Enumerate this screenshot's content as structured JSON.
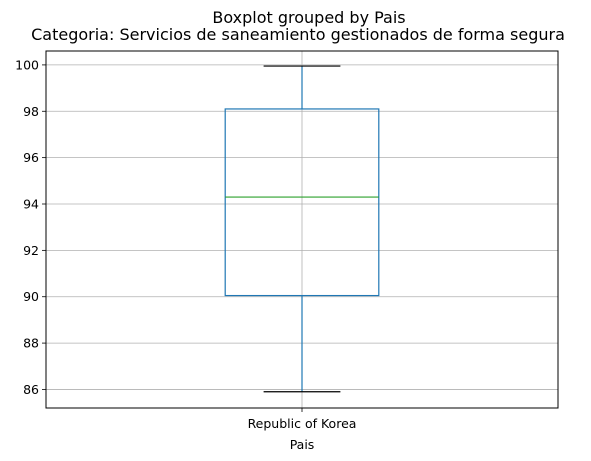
{
  "chart_data": {
    "type": "boxplot",
    "suptitle": "Boxplot grouped by Pais",
    "title": "Categoria: Servicios de saneamiento gestionados de forma segura",
    "xlabel": "Pais",
    "ylabel": "",
    "categories": [
      "Republic of Korea"
    ],
    "boxes": [
      {
        "category": "Republic of Korea",
        "whisker_low": 85.9,
        "q1": 90.05,
        "median": 94.3,
        "q3": 98.1,
        "whisker_high": 99.95
      }
    ],
    "ylim": [
      85.2,
      100.6
    ],
    "yticks": [
      86,
      88,
      90,
      92,
      94,
      96,
      98,
      100
    ],
    "grid": true,
    "colors": {
      "box": "#1f77b4",
      "median": "#2ca02c",
      "grid": "#b0b0b0"
    }
  }
}
